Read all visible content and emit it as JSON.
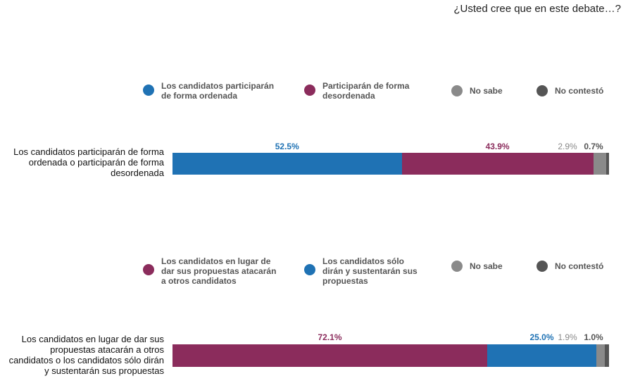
{
  "chart_data": [
    {
      "type": "bar",
      "orientation": "horizontal-stacked",
      "title": "¿Usted cree que en este debate…?",
      "category": "Los candidatos participarán de forma ordenada o participarán de forma desordenada",
      "legend_placement": "top",
      "series": [
        {
          "name": "Los candidatos participarán de forma ordenada",
          "legend_label": "Los candidatos participarán\nde forma ordenada",
          "value": 52.5,
          "label": "52.5%",
          "color": "#1f72b4",
          "label_color": "#1f72b4"
        },
        {
          "name": "Participarán de forma desordenada",
          "legend_label": "Participarán de forma\ndesordenada",
          "value": 43.9,
          "label": "43.9%",
          "color": "#8b2c5c",
          "label_color": "#8b2c5c"
        },
        {
          "name": "No sabe",
          "legend_label": "No sabe",
          "value": 2.9,
          "label": "2.9%",
          "color": "#8a8a8a",
          "label_color": "#8a8a8a"
        },
        {
          "name": "No contestó",
          "legend_label": "No contestó",
          "value": 0.7,
          "label": "0.7%",
          "color": "#555555",
          "label_color": "#555555"
        }
      ]
    },
    {
      "type": "bar",
      "orientation": "horizontal-stacked",
      "category": "Los candidatos en lugar de dar sus propuestas atacarán a otros candidatos o los candidatos sólo dirán y sustentarán sus propuestas",
      "legend_placement": "top",
      "series": [
        {
          "name": "Los candidatos en lugar de dar sus propuestas atacarán a otros candidatos",
          "legend_label": "Los candidatos en lugar de\ndar sus propuestas atacarán\na otros candidatos",
          "value": 72.1,
          "label": "72.1%",
          "color": "#8b2c5c",
          "label_color": "#8b2c5c"
        },
        {
          "name": "Los candidatos sólo dirán y sustentarán sus propuestas",
          "legend_label": "Los candidatos sólo\ndirán y sustentarán sus\n propuestas",
          "value": 25.0,
          "label": "25.0%",
          "color": "#1f72b4",
          "label_color": "#1f72b4"
        },
        {
          "name": "No sabe",
          "legend_label": "No sabe",
          "value": 1.9,
          "label": "1.9%",
          "color": "#8a8a8a",
          "label_color": "#8a8a8a"
        },
        {
          "name": "No contestó",
          "legend_label": "No contestó",
          "value": 1.0,
          "label": "1.0%",
          "color": "#555555",
          "label_color": "#555555"
        }
      ]
    }
  ],
  "row_labels": [
    "Los candidatos participarán de forma\nordenada o participarán de forma\ndesordenada",
    "Los candidatos en lugar de dar sus\npropuestas atacarán a otros\ncandidatos o los candidatos sólo dirán\ny sustentarán sus propuestas"
  ]
}
